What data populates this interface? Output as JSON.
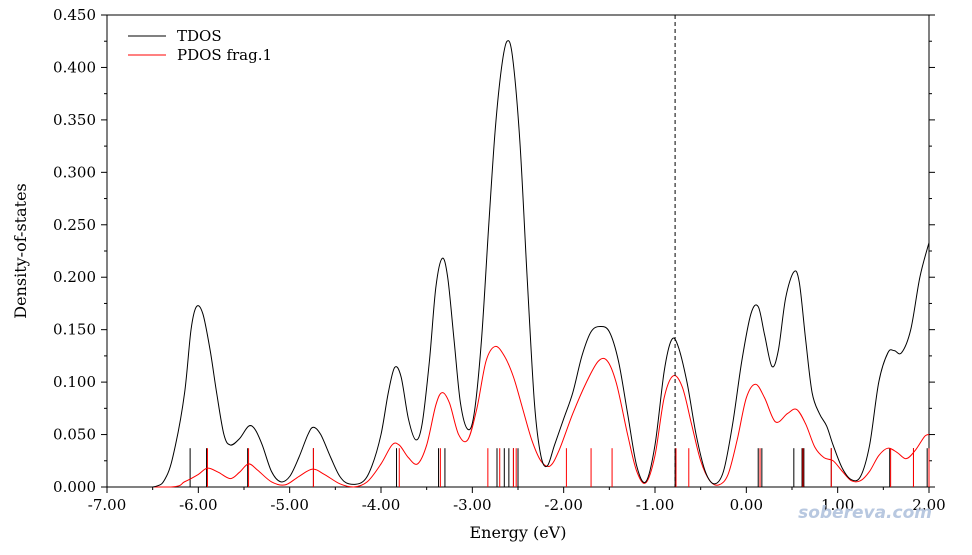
{
  "chart_data": {
    "type": "line",
    "xlabel": "Energy (eV)",
    "ylabel": "Density-of-states",
    "xlim": [
      -7.0,
      2.0
    ],
    "ylim": [
      0.0,
      0.45
    ],
    "x_ticks": [
      "-7.00",
      "-6.00",
      "-5.00",
      "-4.00",
      "-3.00",
      "-2.00",
      "-1.00",
      "0.00",
      "1.00",
      "2.00"
    ],
    "y_ticks": [
      "0.000",
      "0.050",
      "0.100",
      "0.150",
      "0.200",
      "0.250",
      "0.300",
      "0.350",
      "0.400",
      "0.450"
    ],
    "legend_position": "top-left",
    "fermi_level": -0.78,
    "series": [
      {
        "name": "TDOS",
        "color": "#000000",
        "points": [
          [
            -7.0,
            0.0
          ],
          [
            -6.5,
            0.0
          ],
          [
            -6.35,
            0.01
          ],
          [
            -6.25,
            0.04
          ],
          [
            -6.15,
            0.09
          ],
          [
            -6.08,
            0.15
          ],
          [
            -6.02,
            0.172
          ],
          [
            -5.95,
            0.165
          ],
          [
            -5.87,
            0.13
          ],
          [
            -5.8,
            0.09
          ],
          [
            -5.72,
            0.05
          ],
          [
            -5.65,
            0.04
          ],
          [
            -5.55,
            0.046
          ],
          [
            -5.45,
            0.058
          ],
          [
            -5.38,
            0.055
          ],
          [
            -5.3,
            0.04
          ],
          [
            -5.2,
            0.015
          ],
          [
            -5.1,
            0.005
          ],
          [
            -5.0,
            0.01
          ],
          [
            -4.9,
            0.028
          ],
          [
            -4.8,
            0.05
          ],
          [
            -4.74,
            0.057
          ],
          [
            -4.66,
            0.05
          ],
          [
            -4.55,
            0.028
          ],
          [
            -4.45,
            0.01
          ],
          [
            -4.35,
            0.003
          ],
          [
            -4.2,
            0.005
          ],
          [
            -4.1,
            0.02
          ],
          [
            -4.0,
            0.05
          ],
          [
            -3.92,
            0.09
          ],
          [
            -3.85,
            0.114
          ],
          [
            -3.78,
            0.105
          ],
          [
            -3.7,
            0.065
          ],
          [
            -3.62,
            0.045
          ],
          [
            -3.55,
            0.06
          ],
          [
            -3.47,
            0.12
          ],
          [
            -3.4,
            0.19
          ],
          [
            -3.33,
            0.218
          ],
          [
            -3.27,
            0.2
          ],
          [
            -3.2,
            0.14
          ],
          [
            -3.13,
            0.08
          ],
          [
            -3.05,
            0.055
          ],
          [
            -2.98,
            0.07
          ],
          [
            -2.9,
            0.14
          ],
          [
            -2.82,
            0.25
          ],
          [
            -2.75,
            0.34
          ],
          [
            -2.68,
            0.4
          ],
          [
            -2.62,
            0.425
          ],
          [
            -2.56,
            0.41
          ],
          [
            -2.48,
            0.33
          ],
          [
            -2.4,
            0.2
          ],
          [
            -2.32,
            0.08
          ],
          [
            -2.25,
            0.03
          ],
          [
            -2.18,
            0.02
          ],
          [
            -2.1,
            0.04
          ],
          [
            -2.0,
            0.065
          ],
          [
            -1.9,
            0.09
          ],
          [
            -1.8,
            0.125
          ],
          [
            -1.7,
            0.148
          ],
          [
            -1.6,
            0.153
          ],
          [
            -1.5,
            0.148
          ],
          [
            -1.4,
            0.12
          ],
          [
            -1.3,
            0.07
          ],
          [
            -1.2,
            0.02
          ],
          [
            -1.1,
            0.005
          ],
          [
            -1.0,
            0.04
          ],
          [
            -0.9,
            0.11
          ],
          [
            -0.82,
            0.14
          ],
          [
            -0.75,
            0.135
          ],
          [
            -0.65,
            0.1
          ],
          [
            -0.55,
            0.05
          ],
          [
            -0.45,
            0.015
          ],
          [
            -0.35,
            0.003
          ],
          [
            -0.25,
            0.015
          ],
          [
            -0.15,
            0.06
          ],
          [
            -0.05,
            0.12
          ],
          [
            0.05,
            0.165
          ],
          [
            0.13,
            0.172
          ],
          [
            0.2,
            0.145
          ],
          [
            0.28,
            0.115
          ],
          [
            0.35,
            0.13
          ],
          [
            0.43,
            0.18
          ],
          [
            0.52,
            0.205
          ],
          [
            0.58,
            0.195
          ],
          [
            0.65,
            0.14
          ],
          [
            0.72,
            0.09
          ],
          [
            0.8,
            0.07
          ],
          [
            0.88,
            0.058
          ],
          [
            0.95,
            0.04
          ],
          [
            1.05,
            0.018
          ],
          [
            1.15,
            0.007
          ],
          [
            1.25,
            0.01
          ],
          [
            1.35,
            0.04
          ],
          [
            1.45,
            0.1
          ],
          [
            1.55,
            0.128
          ],
          [
            1.62,
            0.13
          ],
          [
            1.7,
            0.128
          ],
          [
            1.8,
            0.15
          ],
          [
            1.9,
            0.2
          ],
          [
            2.0,
            0.233
          ]
        ]
      },
      {
        "name": "PDOS frag.1",
        "color": "#ff0000",
        "points": [
          [
            -7.0,
            0.0
          ],
          [
            -6.3,
            0.0
          ],
          [
            -6.15,
            0.005
          ],
          [
            -6.0,
            0.012
          ],
          [
            -5.9,
            0.018
          ],
          [
            -5.78,
            0.014
          ],
          [
            -5.65,
            0.008
          ],
          [
            -5.55,
            0.014
          ],
          [
            -5.45,
            0.022
          ],
          [
            -5.35,
            0.016
          ],
          [
            -5.2,
            0.005
          ],
          [
            -5.05,
            0.002
          ],
          [
            -4.9,
            0.01
          ],
          [
            -4.75,
            0.017
          ],
          [
            -4.62,
            0.012
          ],
          [
            -4.45,
            0.003
          ],
          [
            -4.3,
            0.0
          ],
          [
            -4.15,
            0.005
          ],
          [
            -4.0,
            0.022
          ],
          [
            -3.88,
            0.04
          ],
          [
            -3.8,
            0.04
          ],
          [
            -3.7,
            0.028
          ],
          [
            -3.6,
            0.022
          ],
          [
            -3.5,
            0.04
          ],
          [
            -3.4,
            0.078
          ],
          [
            -3.33,
            0.09
          ],
          [
            -3.25,
            0.08
          ],
          [
            -3.15,
            0.05
          ],
          [
            -3.05,
            0.045
          ],
          [
            -2.95,
            0.075
          ],
          [
            -2.85,
            0.12
          ],
          [
            -2.75,
            0.134
          ],
          [
            -2.65,
            0.125
          ],
          [
            -2.55,
            0.105
          ],
          [
            -2.45,
            0.075
          ],
          [
            -2.35,
            0.045
          ],
          [
            -2.25,
            0.025
          ],
          [
            -2.15,
            0.02
          ],
          [
            -2.05,
            0.035
          ],
          [
            -1.9,
            0.07
          ],
          [
            -1.75,
            0.1
          ],
          [
            -1.62,
            0.12
          ],
          [
            -1.52,
            0.12
          ],
          [
            -1.42,
            0.098
          ],
          [
            -1.3,
            0.05
          ],
          [
            -1.2,
            0.015
          ],
          [
            -1.1,
            0.004
          ],
          [
            -1.0,
            0.03
          ],
          [
            -0.9,
            0.085
          ],
          [
            -0.8,
            0.106
          ],
          [
            -0.7,
            0.095
          ],
          [
            -0.6,
            0.06
          ],
          [
            -0.5,
            0.025
          ],
          [
            -0.4,
            0.006
          ],
          [
            -0.3,
            0.002
          ],
          [
            -0.2,
            0.012
          ],
          [
            -0.1,
            0.045
          ],
          [
            0.0,
            0.085
          ],
          [
            0.1,
            0.098
          ],
          [
            0.2,
            0.085
          ],
          [
            0.32,
            0.062
          ],
          [
            0.45,
            0.07
          ],
          [
            0.55,
            0.074
          ],
          [
            0.65,
            0.06
          ],
          [
            0.75,
            0.038
          ],
          [
            0.85,
            0.028
          ],
          [
            0.95,
            0.025
          ],
          [
            1.05,
            0.015
          ],
          [
            1.15,
            0.006
          ],
          [
            1.25,
            0.006
          ],
          [
            1.35,
            0.015
          ],
          [
            1.45,
            0.03
          ],
          [
            1.55,
            0.037
          ],
          [
            1.65,
            0.033
          ],
          [
            1.75,
            0.027
          ],
          [
            1.85,
            0.035
          ],
          [
            1.95,
            0.048
          ],
          [
            2.0,
            0.05
          ]
        ]
      }
    ],
    "state_lines": [
      {
        "series": "TDOS",
        "color": "#000000",
        "x": [
          -6.09,
          -5.91,
          -5.46,
          -4.74,
          -3.83,
          -3.37,
          -3.3,
          -2.73,
          -2.65,
          -2.6,
          -2.55,
          -2.5,
          -0.78,
          0.13,
          0.17,
          0.52,
          0.61,
          0.63,
          0.93,
          1.57,
          1.83,
          1.98
        ]
      },
      {
        "series": "PDOS frag.1",
        "color": "#ff0000",
        "x": [
          -5.9,
          -5.45,
          -4.74,
          -3.8,
          -3.35,
          -2.83,
          -2.7,
          -2.55,
          -2.52,
          -1.97,
          -1.7,
          -1.47,
          -0.77,
          -0.63,
          0.15,
          0.62,
          0.93,
          1.58,
          1.83,
          2.0
        ]
      }
    ]
  },
  "watermark": {
    "text": "sobereva.com"
  }
}
